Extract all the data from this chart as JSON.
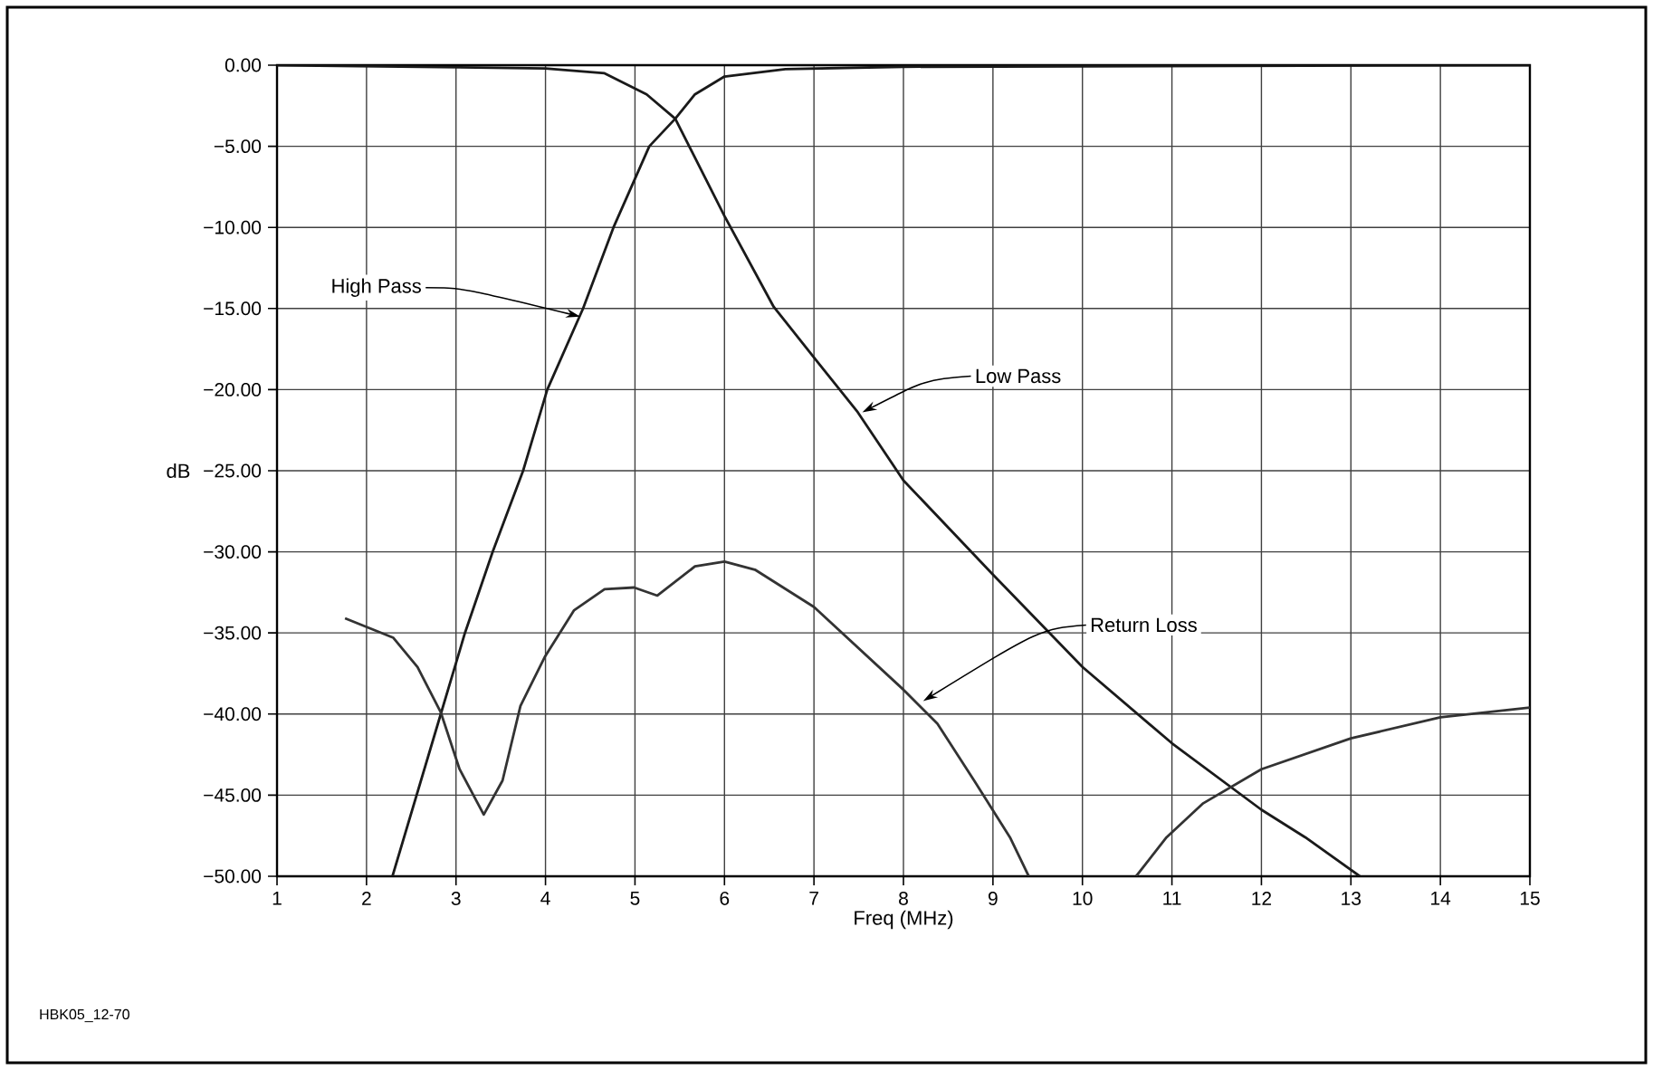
{
  "chart_data": {
    "type": "line",
    "xlabel": "Freq (MHz)",
    "ylabel": "dB",
    "xlim": [
      1,
      15
    ],
    "xticks": [
      1,
      2,
      3,
      4,
      5,
      6,
      7,
      8,
      9,
      10,
      11,
      12,
      13,
      14,
      15
    ],
    "ylim": [
      -50,
      0
    ],
    "yticks": [
      {
        "value": 0,
        "label": "0.00"
      },
      {
        "value": -5,
        "label": "−5.00"
      },
      {
        "value": -10,
        "label": "−10.00"
      },
      {
        "value": -15,
        "label": "−15.00"
      },
      {
        "value": -20,
        "label": "−20.00"
      },
      {
        "value": -25,
        "label": "−25.00"
      },
      {
        "value": -30,
        "label": "−30.00"
      },
      {
        "value": -35,
        "label": "−35.00"
      },
      {
        "value": -40,
        "label": "−40.00"
      },
      {
        "value": -45,
        "label": "−45.00"
      },
      {
        "value": -50,
        "label": "−50.00"
      }
    ],
    "grid": true,
    "marker": "none",
    "line_style": "solid",
    "series": [
      {
        "color": "#1a1a1a",
        "x": [
          2.29,
          2.83,
          3.1,
          3.41,
          3.75,
          4.02,
          4.42,
          4.76,
          5.16,
          5.45,
          5.67,
          6.0,
          6.68,
          8,
          15
        ],
        "values": [
          -50,
          -40,
          -35,
          -30,
          -25,
          -20,
          -15,
          -10,
          -5,
          -3.3,
          -1.8,
          -0.7,
          -0.25,
          -0.1,
          0
        ]
      },
      {
        "color": "#1a1a1a",
        "x": [
          1,
          4,
          4.66,
          5.13,
          5.45,
          6.0,
          6.55,
          7.04,
          7.49,
          8,
          9,
          10,
          11,
          12,
          12.49,
          13.1
        ],
        "values": [
          0,
          -0.2,
          -0.5,
          -1.8,
          -3.3,
          -9.3,
          -14.9,
          -18.3,
          -21.4,
          -25.6,
          -31.4,
          -37.1,
          -41.8,
          -45.9,
          -47.6,
          -50
        ]
      },
      {
        "color": "#333333",
        "x": [
          1.76,
          2.3,
          2.57,
          2.83,
          3.04,
          3.31,
          3.52,
          3.72,
          3.99,
          4.32,
          4.66,
          4.99,
          5.25,
          5.67,
          6.0,
          6.34,
          7.0,
          8.0,
          8.38,
          8.79,
          9.19,
          9.4
        ],
        "values": [
          -34.1,
          -35.3,
          -37.1,
          -39.9,
          -43.4,
          -46.2,
          -44.1,
          -39.5,
          -36.5,
          -33.6,
          -32.3,
          -32.2,
          -32.7,
          -30.9,
          -30.6,
          -31.1,
          -33.4,
          -38.5,
          -40.6,
          -44.1,
          -47.6,
          -50
        ]
      },
      {
        "color": "#333333",
        "x": [
          10.6,
          10.94,
          11.35,
          12,
          13,
          14,
          15
        ],
        "values": [
          -50,
          -47.6,
          -45.5,
          -43.4,
          -41.5,
          -40.2,
          -39.6
        ]
      }
    ],
    "annotations": [
      {
        "text": "High Pass",
        "x": 4.39,
        "y": -15.5
      },
      {
        "text": "Low Pass",
        "x": 7.54,
        "y": -21.4
      },
      {
        "text": "Return Loss",
        "x": 8.22,
        "y": -39.2
      },
      "HBK05_12-70"
    ]
  }
}
